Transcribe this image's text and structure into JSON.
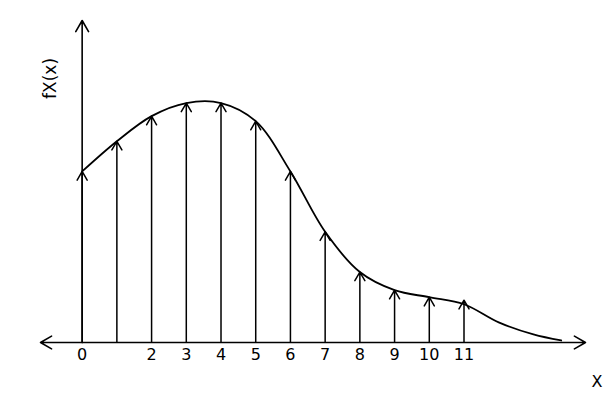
{
  "chart_data": {
    "type": "stem",
    "x_label": "X",
    "y_label": "fX(x)",
    "color": "#000000",
    "series": [
      {
        "type": "stem",
        "marker": "arrow",
        "x": [
          0,
          1,
          2,
          3,
          4,
          5,
          6,
          7,
          8,
          9,
          10,
          11
        ],
        "values": [
          1.7,
          2.0,
          2.25,
          2.38,
          2.38,
          2.2,
          1.7,
          1.1,
          0.7,
          0.52,
          0.45,
          0.42
        ]
      },
      {
        "type": "line",
        "x": [
          0,
          1,
          2,
          3,
          4,
          5,
          6,
          7,
          8,
          9,
          10,
          11,
          12,
          13,
          13.8
        ],
        "values": [
          1.7,
          2.0,
          2.25,
          2.38,
          2.38,
          2.2,
          1.7,
          1.1,
          0.7,
          0.52,
          0.45,
          0.38,
          0.2,
          0.08,
          0.02
        ]
      }
    ],
    "xlim": [
      -1.2,
      14.5
    ],
    "xticks": [
      0,
      2,
      3,
      4,
      5,
      6,
      7,
      8,
      9,
      10,
      11
    ],
    "ylim": [
      0,
      3.2
    ],
    "tick_labels": "x"
  }
}
